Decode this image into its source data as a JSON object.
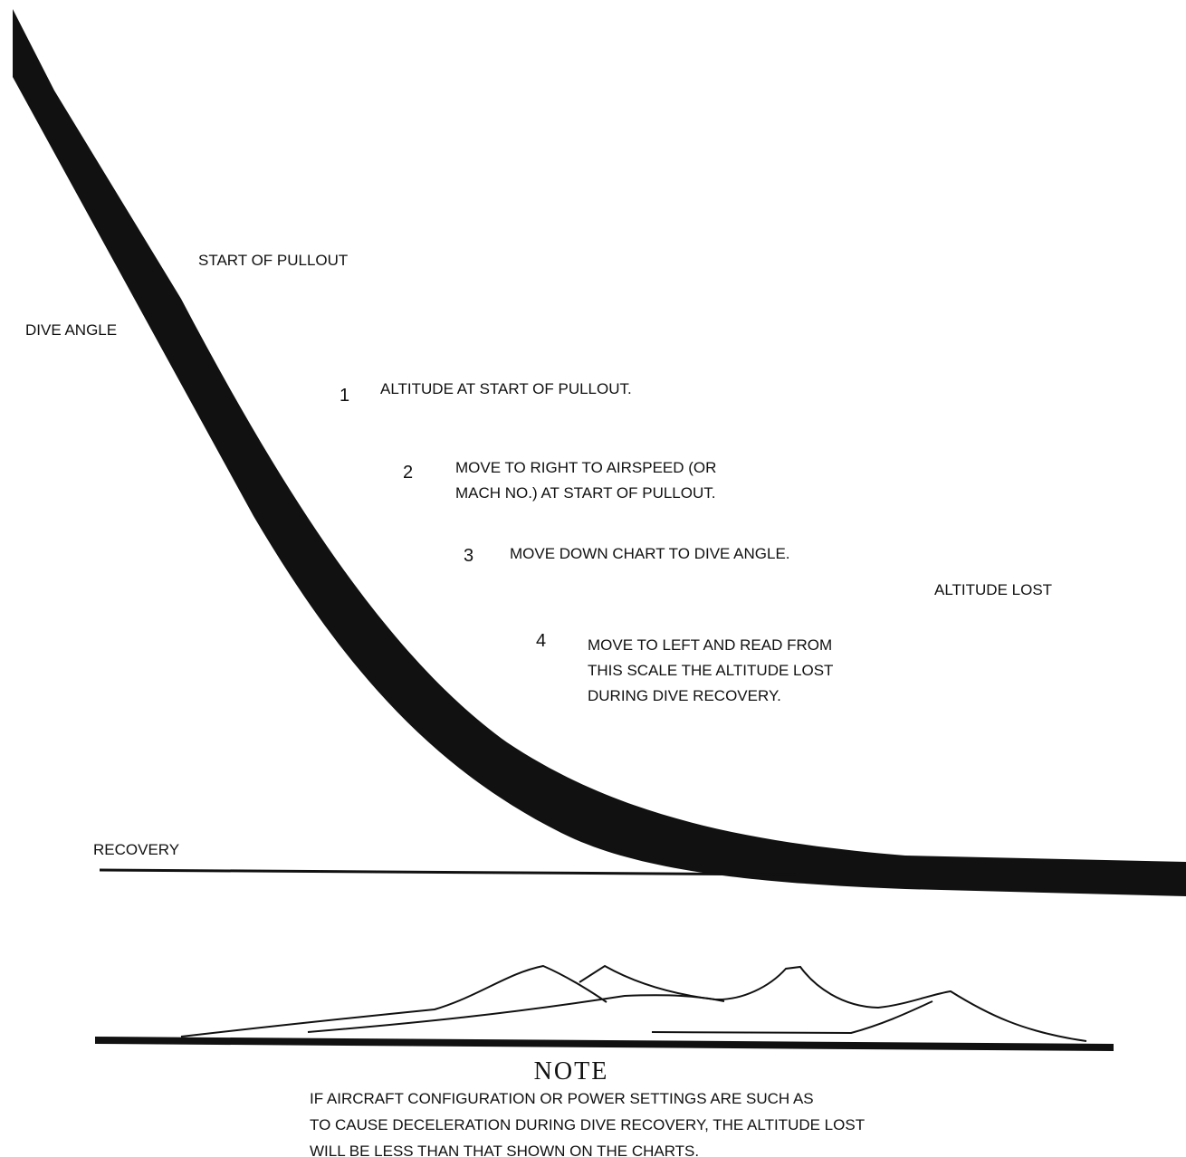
{
  "labels": {
    "start_of_pullout": "START OF PULLOUT",
    "dive_angle": "DIVE ANGLE",
    "altitude_lost": "ALTITUDE LOST",
    "recovery": "RECOVERY"
  },
  "steps": [
    {
      "number": "1",
      "lines": [
        "ALTITUDE AT START OF PULLOUT."
      ]
    },
    {
      "number": "2",
      "lines": [
        "MOVE TO RIGHT TO AIRSPEED (OR",
        "MACH NO.) AT START OF PULLOUT."
      ]
    },
    {
      "number": "3",
      "lines": [
        "MOVE DOWN CHART TO DIVE ANGLE."
      ]
    },
    {
      "number": "4",
      "lines": [
        "MOVE TO LEFT AND READ FROM",
        "THIS SCALE THE ALTITUDE LOST",
        "DURING DIVE RECOVERY."
      ]
    }
  ],
  "note": {
    "title": "NOTE",
    "lines": [
      "IF AIRCRAFT CONFIGURATION OR POWER SETTINGS ARE SUCH AS",
      "TO CAUSE DECELERATION DURING DIVE RECOVERY, THE ALTITUDE LOST",
      "WILL BE LESS THAN THAT SHOWN ON THE CHARTS."
    ]
  }
}
